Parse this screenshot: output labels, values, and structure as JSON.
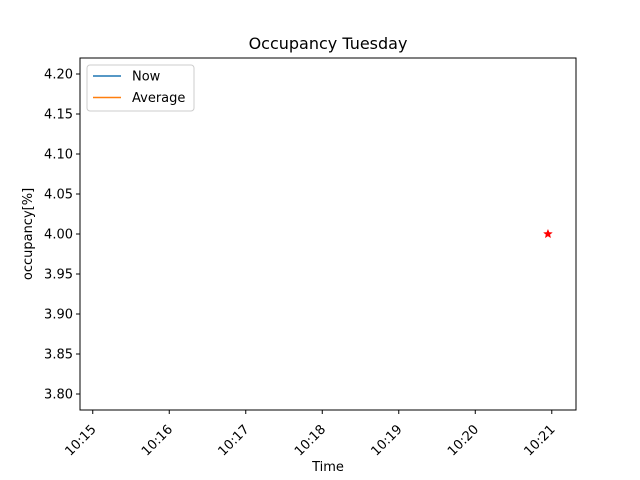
{
  "chart_data": {
    "type": "line",
    "title": "Occupancy Tuesday",
    "xlabel": "Time",
    "ylabel": "occupancy[%]",
    "x_ticks": [
      "10:15",
      "10:16",
      "10:17",
      "10:18",
      "10:19",
      "10:20",
      "10:21"
    ],
    "xlim": [
      "10:14:50",
      "10:21:19"
    ],
    "y_ticks": [
      "3.80",
      "3.85",
      "3.90",
      "3.95",
      "4.00",
      "4.05",
      "4.10",
      "4.15",
      "4.20"
    ],
    "ylim": [
      3.78,
      4.22
    ],
    "series": [
      {
        "name": "Now",
        "color": "#1f77b4",
        "points": []
      },
      {
        "name": "Average",
        "color": "#ff7f0e",
        "points": []
      }
    ],
    "markers": [
      {
        "x": "10:20:57",
        "y": 4.0,
        "shape": "star",
        "color": "#ff0000"
      }
    ],
    "legend": {
      "placement": "top-left"
    },
    "grid": false
  }
}
